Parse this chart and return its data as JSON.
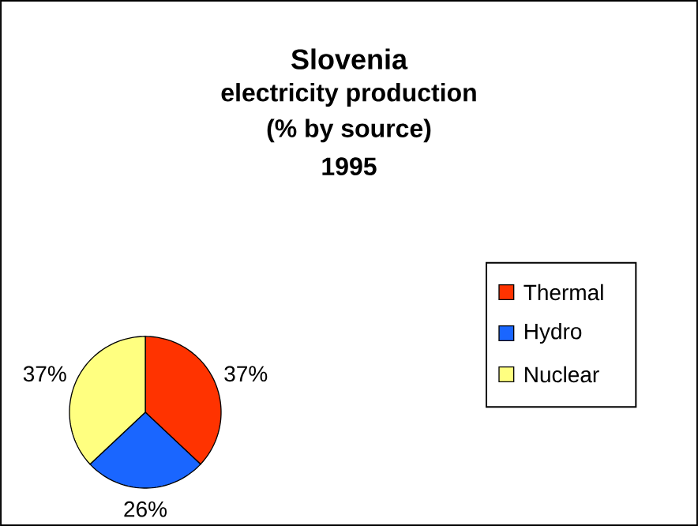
{
  "chart_data": {
    "type": "pie",
    "title": "Slovenia",
    "subtitle": "electricity production",
    "annotations": [
      "(% by source)",
      "1995"
    ],
    "categories": [
      "Thermal",
      "Hydro",
      "Nuclear"
    ],
    "values": [
      37,
      26,
      37
    ],
    "colors": [
      "#ff3300",
      "#1a66ff",
      "#ffff80"
    ],
    "value_labels": [
      "37%",
      "26%",
      "37%"
    ],
    "legend": "right"
  }
}
